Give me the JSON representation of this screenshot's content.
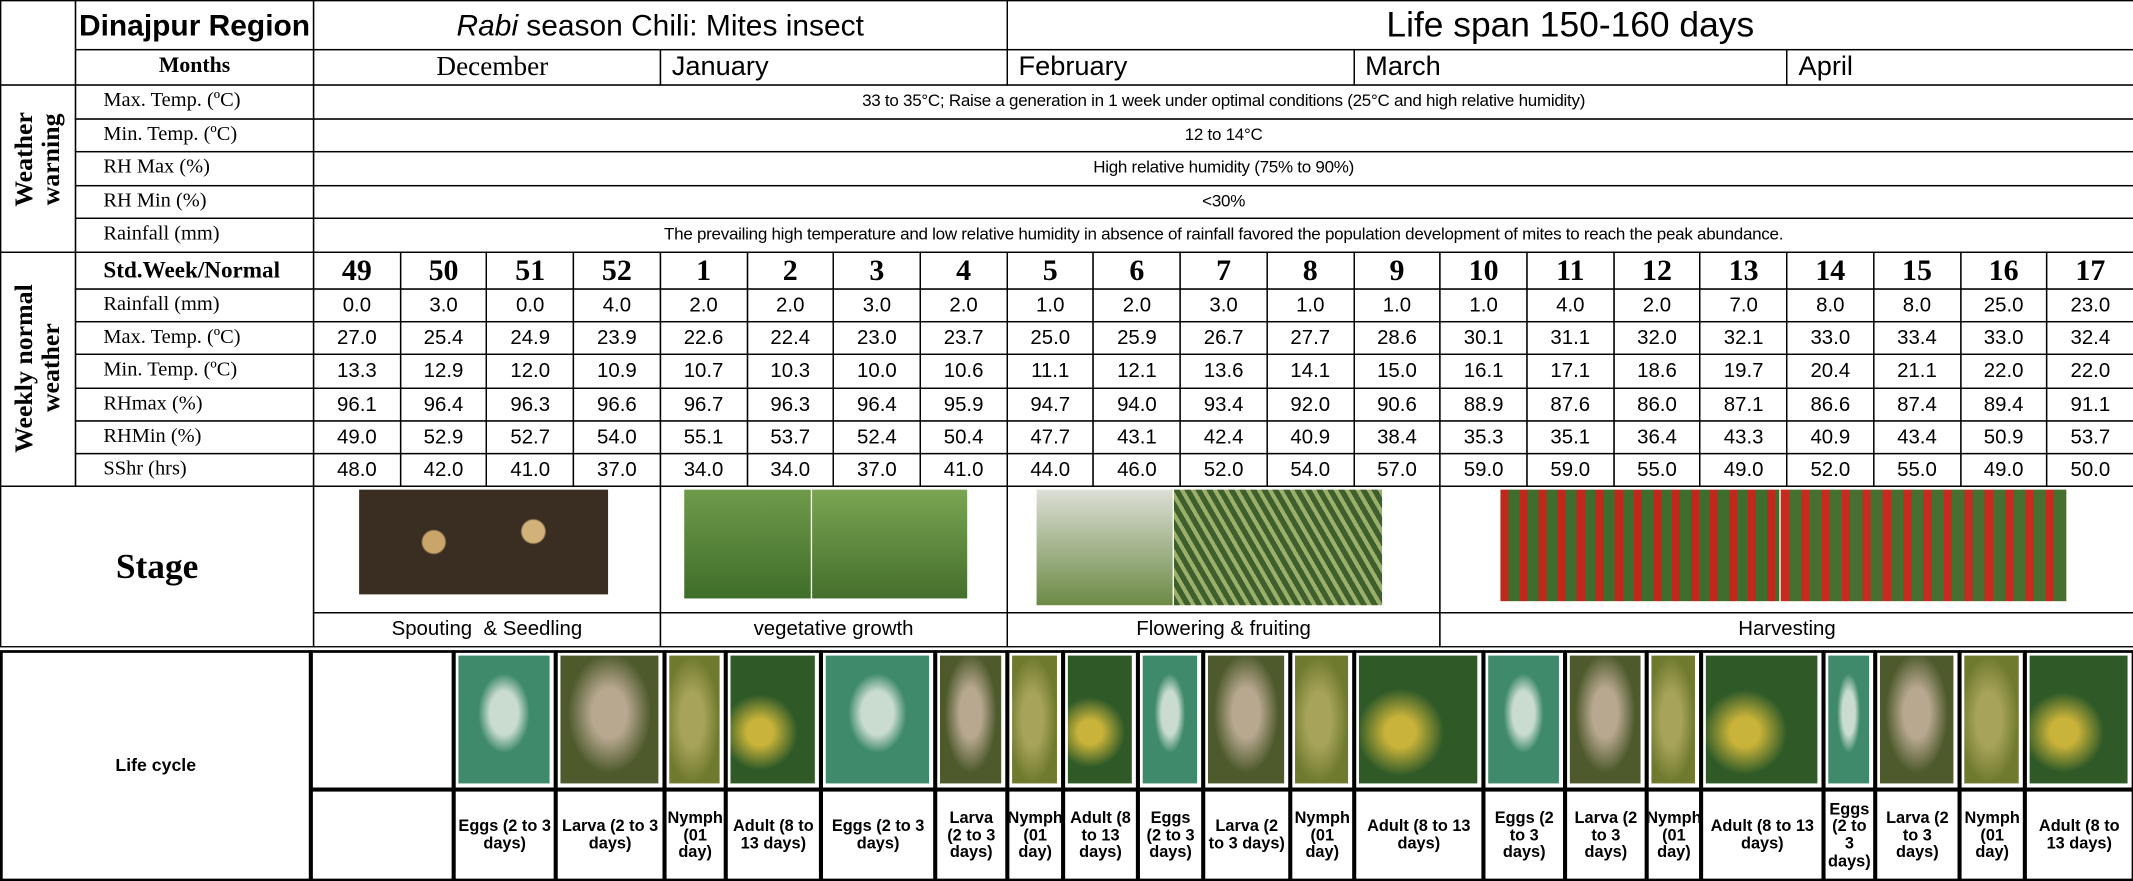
{
  "header": {
    "region": "Dinajpur Region",
    "crop_italic": "Rabi",
    "crop_rest": "season Chili: Mites insect",
    "life_span": "Life span 150-160 days"
  },
  "months": {
    "label": "Months",
    "items": [
      "December",
      "January",
      "February",
      "March",
      "April"
    ]
  },
  "weather_warning": {
    "group": "Weather warning",
    "rows": [
      {
        "label": "Max. Temp. (ºC)",
        "text": "33 to 35°C; Raise a generation in 1 week under optimal conditions (25°C and high relative humidity)"
      },
      {
        "label": "Min. Temp. (ºC)",
        "text": "12 to 14°C"
      },
      {
        "label": "RH Max (%)",
        "text": "High relative humidity (75% to 90%)"
      },
      {
        "label": "RH Min (%)",
        "text": "<30%"
      },
      {
        "label": "Rainfall (mm)",
        "text": "The prevailing high temperature and low relative humidity in absence of rainfall favored the population development of mites to reach the peak abundance."
      }
    ]
  },
  "weekly": {
    "group": "Weekly normal weather",
    "header_label": "Std.Week/Normal",
    "weeks": [
      49,
      50,
      51,
      52,
      1,
      2,
      3,
      4,
      5,
      6,
      7,
      8,
      9,
      10,
      11,
      12,
      13,
      14,
      15,
      16,
      17
    ],
    "rows": [
      {
        "label": "Rainfall (mm)",
        "values": [
          "0.0",
          "3.0",
          "0.0",
          "4.0",
          "2.0",
          "2.0",
          "3.0",
          "2.0",
          "1.0",
          "2.0",
          "3.0",
          "1.0",
          "1.0",
          "1.0",
          "4.0",
          "2.0",
          "7.0",
          "8.0",
          "8.0",
          "25.0",
          "23.0"
        ]
      },
      {
        "label": "Max. Temp. (ºC)",
        "values": [
          "27.0",
          "25.4",
          "24.9",
          "23.9",
          "22.6",
          "22.4",
          "23.0",
          "23.7",
          "25.0",
          "25.9",
          "26.7",
          "27.7",
          "28.6",
          "30.1",
          "31.1",
          "32.0",
          "32.1",
          "33.0",
          "33.4",
          "33.0",
          "32.4"
        ]
      },
      {
        "label": "Min. Temp. (ºC)",
        "values": [
          "13.3",
          "12.9",
          "12.0",
          "10.9",
          "10.7",
          "10.3",
          "10.0",
          "10.6",
          "11.1",
          "12.1",
          "13.6",
          "14.1",
          "15.0",
          "16.1",
          "17.1",
          "18.6",
          "19.7",
          "20.4",
          "21.1",
          "22.0",
          "22.0"
        ]
      },
      {
        "label": "RHmax (%)",
        "values": [
          "96.1",
          "96.4",
          "96.3",
          "96.6",
          "96.7",
          "96.3",
          "96.4",
          "95.9",
          "94.7",
          "94.0",
          "93.4",
          "92.0",
          "90.6",
          "88.9",
          "87.6",
          "86.0",
          "87.1",
          "86.6",
          "87.4",
          "89.4",
          "91.1"
        ]
      },
      {
        "label": "RHMin (%)",
        "values": [
          "49.0",
          "52.9",
          "52.7",
          "54.0",
          "55.1",
          "53.7",
          "52.4",
          "50.4",
          "47.7",
          "43.1",
          "42.4",
          "40.9",
          "38.4",
          "35.3",
          "35.1",
          "36.4",
          "43.3",
          "40.9",
          "43.4",
          "50.9",
          "53.7"
        ]
      },
      {
        "label": "SShr (hrs)",
        "values": [
          "48.0",
          "42.0",
          "41.0",
          "37.0",
          "34.0",
          "34.0",
          "37.0",
          "41.0",
          "44.0",
          "46.0",
          "52.0",
          "54.0",
          "57.0",
          "59.0",
          "59.0",
          "55.0",
          "49.0",
          "52.0",
          "55.0",
          "49.0",
          "50.0"
        ]
      }
    ]
  },
  "stage": {
    "label": "Stage",
    "phases": [
      "Spouting  & Seedling",
      "vegetative growth",
      "Flowering & fruiting",
      "Harvesting"
    ]
  },
  "life_cycle": {
    "label": "Life cycle",
    "stages": [
      "Eggs (2 to 3 days)",
      "Larva (2 to 3 days)",
      "Nymph (01 day)",
      "Adult (8 to 13 days)",
      "Eggs (2 to 3 days)",
      "Larva (2 to 3 days)",
      "Nymph (01 day)",
      "Adult (8 to 13 days)",
      "Eggs (2 to 3 days)",
      "Larva (2 to 3 days)",
      "Nymph (01 day)",
      "Adult (8 to 13 days)",
      "Eggs (2 to 3 days)",
      "Larva (2 to 3 days)",
      "Nymph (01 day)",
      "Adult (8 to 13 days)",
      "Eggs (2 to 3 days)",
      "Larva (2 to 3 days)",
      "Nymph (01 day)",
      "Adult (8 to 13 days)"
    ]
  }
}
